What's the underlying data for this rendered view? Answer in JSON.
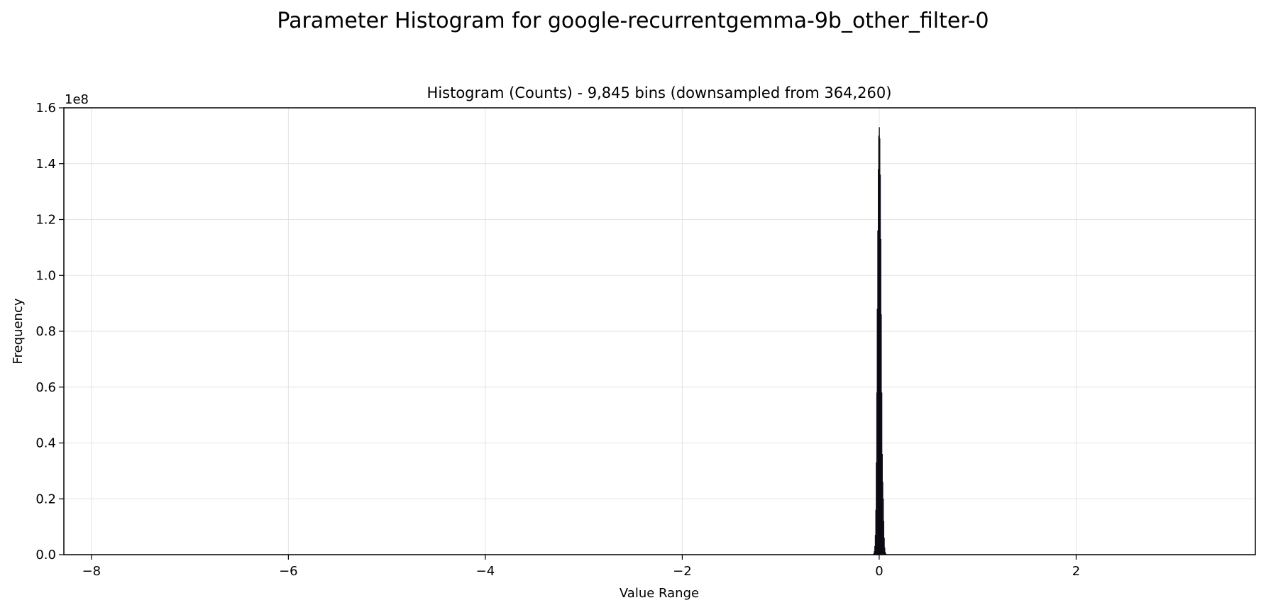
{
  "chart_data": {
    "type": "bar",
    "title": "Parameter Histogram for google-recurrentgemma-9b_other_filter-0",
    "subtitle": "Histogram (Counts) - 9,845 bins (downsampled from 364,260)",
    "xlabel": "Value Range",
    "ylabel": "Frequency",
    "y_offset_label": "1e8",
    "y_scale": 100000000,
    "xlim": [
      -8.28,
      3.82
    ],
    "ylim": [
      0,
      1.6
    ],
    "x_ticks": [
      -8,
      -6,
      -4,
      -2,
      0,
      2
    ],
    "x_tick_labels": [
      "−8",
      "−6",
      "−4",
      "−2",
      "0",
      "2"
    ],
    "y_ticks": [
      0.0,
      0.2,
      0.4,
      0.6,
      0.8,
      1.0,
      1.2,
      1.4,
      1.6
    ],
    "y_tick_labels": [
      "0.0",
      "0.2",
      "0.4",
      "0.6",
      "0.8",
      "1.0",
      "1.2",
      "1.4",
      "1.6"
    ],
    "grid": true,
    "bar_color": "#1a1a2e",
    "bin_width": 0.0025,
    "x": [
      -0.06,
      -0.055,
      -0.05,
      -0.045,
      -0.04,
      -0.035,
      -0.03,
      -0.025,
      -0.02,
      -0.015,
      -0.01,
      -0.005,
      0.0,
      0.005,
      0.01,
      0.015,
      0.02,
      0.025,
      0.03,
      0.035,
      0.04,
      0.045,
      0.05,
      0.055,
      0.06,
      0.065,
      0.07
    ],
    "values": [
      0.002,
      0.005,
      0.012,
      0.03,
      0.07,
      0.16,
      0.33,
      0.58,
      0.88,
      1.16,
      1.38,
      1.5,
      1.53,
      1.49,
      1.36,
      1.13,
      0.86,
      0.58,
      0.36,
      0.26,
      0.2,
      0.12,
      0.06,
      0.025,
      0.01,
      0.004,
      0.001
    ]
  }
}
